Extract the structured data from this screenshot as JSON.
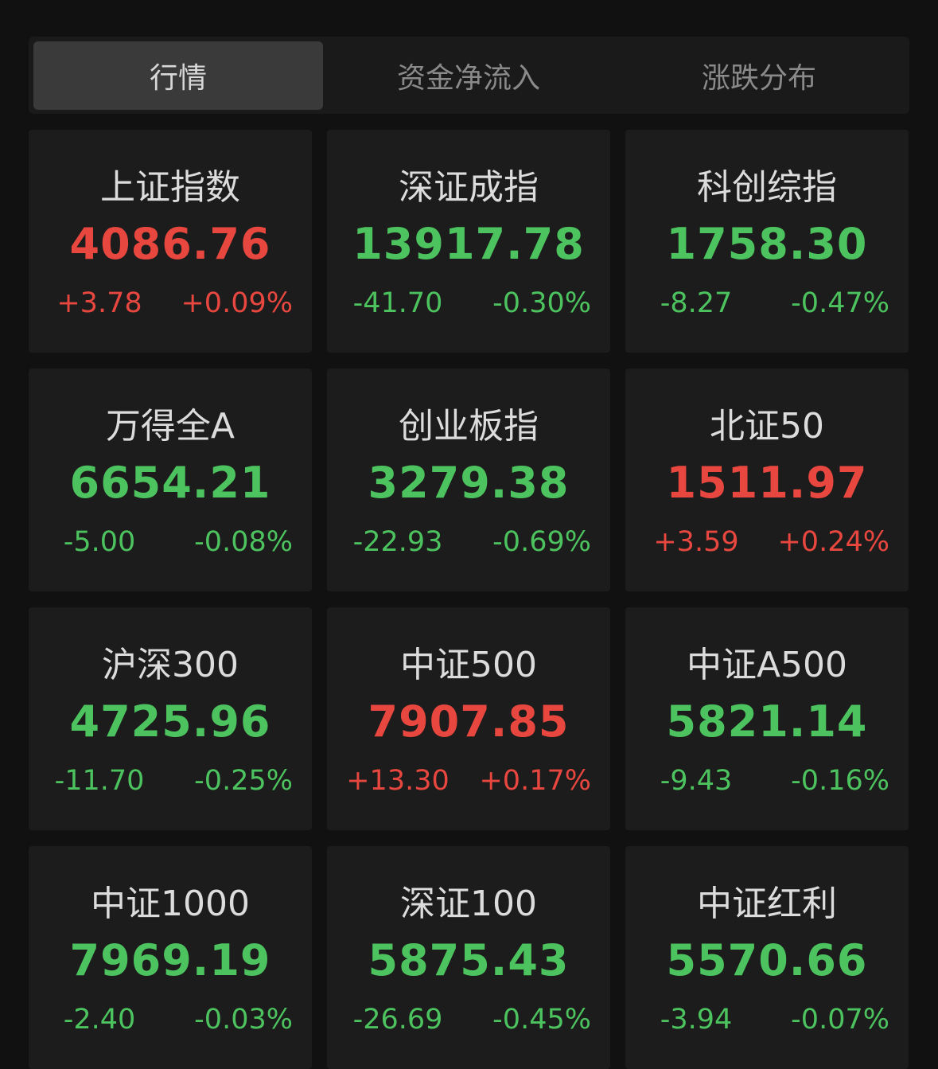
{
  "tabs": [
    {
      "label": "行情",
      "active": true
    },
    {
      "label": "资金净流入",
      "active": false
    },
    {
      "label": "涨跌分布",
      "active": false
    }
  ],
  "colors": {
    "up": "#e8473f",
    "down": "#4cc35e"
  },
  "indices": [
    {
      "name": "上证指数",
      "value": "4086.76",
      "change": "+3.78",
      "pct": "+0.09%",
      "dir": "up"
    },
    {
      "name": "深证成指",
      "value": "13917.78",
      "change": "-41.70",
      "pct": "-0.30%",
      "dir": "down"
    },
    {
      "name": "科创综指",
      "value": "1758.30",
      "change": "-8.27",
      "pct": "-0.47%",
      "dir": "down"
    },
    {
      "name": "万得全A",
      "value": "6654.21",
      "change": "-5.00",
      "pct": "-0.08%",
      "dir": "down"
    },
    {
      "name": "创业板指",
      "value": "3279.38",
      "change": "-22.93",
      "pct": "-0.69%",
      "dir": "down"
    },
    {
      "name": "北证50",
      "value": "1511.97",
      "change": "+3.59",
      "pct": "+0.24%",
      "dir": "up"
    },
    {
      "name": "沪深300",
      "value": "4725.96",
      "change": "-11.70",
      "pct": "-0.25%",
      "dir": "down"
    },
    {
      "name": "中证500",
      "value": "7907.85",
      "change": "+13.30",
      "pct": "+0.17%",
      "dir": "up"
    },
    {
      "name": "中证A500",
      "value": "5821.14",
      "change": "-9.43",
      "pct": "-0.16%",
      "dir": "down"
    },
    {
      "name": "中证1000",
      "value": "7969.19",
      "change": "-2.40",
      "pct": "-0.03%",
      "dir": "down"
    },
    {
      "name": "深证100",
      "value": "5875.43",
      "change": "-26.69",
      "pct": "-0.45%",
      "dir": "down"
    },
    {
      "name": "中证红利",
      "value": "5570.66",
      "change": "-3.94",
      "pct": "-0.07%",
      "dir": "down"
    }
  ]
}
